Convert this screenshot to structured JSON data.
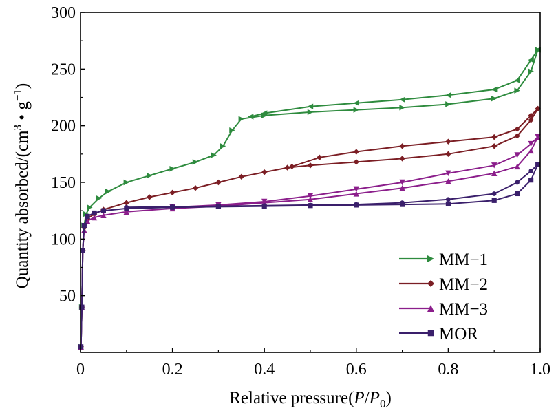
{
  "chart_data": {
    "type": "line",
    "xlabel": "Relative pressure(P/P0)",
    "xlabel_parts": {
      "prefix": "Relative pressure(",
      "italic_p": "P",
      "slash": "/",
      "italic_p0": "P",
      "sub": "0",
      "suffix": ")"
    },
    "ylabel": "Quantity absorbed/(cm3 • g−1)",
    "ylabel_parts": {
      "prefix": "Quantity absorbed/(cm",
      "sup3": "3",
      "dot": " • g",
      "sup": "−1",
      "suffix": ")"
    },
    "xlim": [
      0,
      1.0
    ],
    "ylim": [
      0,
      300
    ],
    "x_ticks": [
      0,
      0.2,
      0.4,
      0.6,
      0.8,
      1.0
    ],
    "x_tick_labels": [
      "0",
      "0.2",
      "0.4",
      "0.6",
      "0.8",
      "1.0"
    ],
    "y_ticks": [
      50,
      100,
      150,
      200,
      250,
      300
    ],
    "y_tick_labels": [
      "50",
      "100",
      "150",
      "200",
      "250",
      "300"
    ],
    "grid": false,
    "legend_position": "bottom-right",
    "series": [
      {
        "name": "MM−1",
        "color": "#2e8b3e",
        "marker": "triangle-right",
        "adsorption": [
          [
            0.001,
            5
          ],
          [
            0.003,
            40
          ],
          [
            0.005,
            90
          ],
          [
            0.008,
            112
          ],
          [
            0.012,
            122
          ],
          [
            0.02,
            128
          ],
          [
            0.04,
            136
          ],
          [
            0.06,
            142
          ],
          [
            0.1,
            150
          ],
          [
            0.15,
            156
          ],
          [
            0.2,
            162
          ],
          [
            0.25,
            168
          ],
          [
            0.29,
            174
          ],
          [
            0.31,
            182
          ],
          [
            0.33,
            196
          ],
          [
            0.35,
            206
          ],
          [
            0.4,
            209
          ],
          [
            0.5,
            212
          ],
          [
            0.6,
            214
          ],
          [
            0.7,
            216
          ],
          [
            0.8,
            219
          ],
          [
            0.9,
            224
          ],
          [
            0.95,
            231
          ],
          [
            0.98,
            248
          ],
          [
            0.995,
            267
          ]
        ],
        "desorption": [
          [
            0.995,
            267
          ],
          [
            0.98,
            258
          ],
          [
            0.95,
            240
          ],
          [
            0.9,
            232
          ],
          [
            0.8,
            227
          ],
          [
            0.7,
            223
          ],
          [
            0.6,
            220
          ],
          [
            0.5,
            217
          ],
          [
            0.4,
            211
          ],
          [
            0.37,
            208
          ]
        ]
      },
      {
        "name": "MM−2",
        "color": "#7b1e24",
        "marker": "diamond",
        "adsorption": [
          [
            0.001,
            5
          ],
          [
            0.003,
            40
          ],
          [
            0.005,
            90
          ],
          [
            0.008,
            110
          ],
          [
            0.015,
            118
          ],
          [
            0.03,
            122
          ],
          [
            0.05,
            126
          ],
          [
            0.1,
            132
          ],
          [
            0.15,
            137
          ],
          [
            0.2,
            141
          ],
          [
            0.25,
            145
          ],
          [
            0.3,
            150
          ],
          [
            0.35,
            155
          ],
          [
            0.4,
            159
          ],
          [
            0.45,
            163
          ],
          [
            0.5,
            165
          ],
          [
            0.6,
            168
          ],
          [
            0.7,
            171
          ],
          [
            0.8,
            175
          ],
          [
            0.9,
            182
          ],
          [
            0.95,
            191
          ],
          [
            0.98,
            205
          ],
          [
            0.995,
            215
          ]
        ],
        "desorption": [
          [
            0.995,
            215
          ],
          [
            0.98,
            209
          ],
          [
            0.95,
            197
          ],
          [
            0.9,
            190
          ],
          [
            0.8,
            186
          ],
          [
            0.7,
            182
          ],
          [
            0.6,
            177
          ],
          [
            0.52,
            172
          ],
          [
            0.46,
            164
          ]
        ]
      },
      {
        "name": "MM−3",
        "color": "#8b1e8b",
        "marker": "triangle-up",
        "adsorption": [
          [
            0.001,
            5
          ],
          [
            0.003,
            40
          ],
          [
            0.005,
            90
          ],
          [
            0.008,
            108
          ],
          [
            0.015,
            116
          ],
          [
            0.03,
            119
          ],
          [
            0.05,
            121
          ],
          [
            0.1,
            124
          ],
          [
            0.2,
            127
          ],
          [
            0.3,
            129
          ],
          [
            0.4,
            132
          ],
          [
            0.5,
            135
          ],
          [
            0.6,
            140
          ],
          [
            0.7,
            145
          ],
          [
            0.8,
            151
          ],
          [
            0.9,
            158
          ],
          [
            0.95,
            164
          ],
          [
            0.98,
            178
          ],
          [
            0.995,
            190
          ]
        ],
        "desorption": [
          [
            0.995,
            190
          ],
          [
            0.98,
            184
          ],
          [
            0.95,
            174
          ],
          [
            0.9,
            165
          ],
          [
            0.8,
            158
          ],
          [
            0.7,
            150
          ],
          [
            0.6,
            144
          ],
          [
            0.5,
            138
          ],
          [
            0.4,
            133
          ],
          [
            0.3,
            130
          ],
          [
            0.2,
            128
          ]
        ]
      },
      {
        "name": "MOR",
        "color": "#3a1f6b",
        "marker": "square",
        "adsorption": [
          [
            0.001,
            5
          ],
          [
            0.003,
            40
          ],
          [
            0.005,
            90
          ],
          [
            0.008,
            112
          ],
          [
            0.015,
            120
          ],
          [
            0.03,
            123
          ],
          [
            0.05,
            125
          ],
          [
            0.1,
            127
          ],
          [
            0.2,
            128
          ],
          [
            0.3,
            128.5
          ],
          [
            0.4,
            129
          ],
          [
            0.5,
            129.5
          ],
          [
            0.6,
            130
          ],
          [
            0.7,
            130.5
          ],
          [
            0.8,
            131
          ],
          [
            0.9,
            134
          ],
          [
            0.95,
            140
          ],
          [
            0.98,
            152
          ],
          [
            0.995,
            166
          ]
        ],
        "desorption": [
          [
            0.995,
            166
          ],
          [
            0.98,
            160
          ],
          [
            0.95,
            150
          ],
          [
            0.9,
            140
          ],
          [
            0.8,
            135
          ],
          [
            0.7,
            132
          ],
          [
            0.6,
            130.5
          ],
          [
            0.5,
            130
          ],
          [
            0.4,
            129.5
          ],
          [
            0.3,
            129
          ],
          [
            0.2,
            128.5
          ],
          [
            0.1,
            128
          ]
        ]
      }
    ]
  }
}
